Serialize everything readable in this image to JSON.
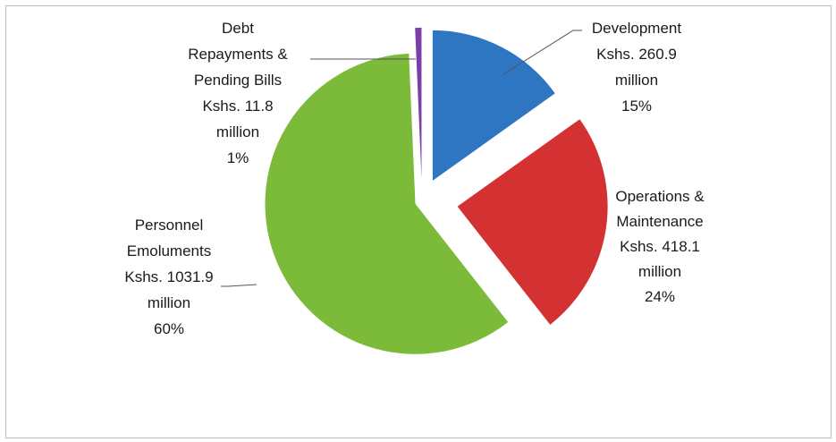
{
  "chart_data": {
    "type": "pie",
    "exploded": true,
    "slices": [
      {
        "lines": [
          "Development",
          "Kshs. 260.9",
          "million",
          "15%"
        ],
        "name": "Development",
        "value": 260.9,
        "percent": 15,
        "color": "#2e75c2"
      },
      {
        "lines": [
          "Operations &",
          "Maintenance",
          "Kshs. 418.1",
          "million",
          "24%"
        ],
        "name": "Operations & Maintenance",
        "value": 418.1,
        "percent": 24,
        "color": "#d43232"
      },
      {
        "lines": [
          "Personnel",
          "Emoluments",
          "Kshs. 1031.9",
          "million",
          "60%"
        ],
        "name": "Personnel Emoluments",
        "value": 1031.9,
        "percent": 60,
        "color": "#7cba3a"
      },
      {
        "lines": [
          "Debt",
          "Repayments &",
          "Pending Bills",
          "Kshs. 11.8",
          "million",
          "1%"
        ],
        "name": "Debt Repayments & Pending Bills",
        "value": 11.8,
        "percent": 1,
        "color": "#7b3fa9"
      }
    ]
  }
}
